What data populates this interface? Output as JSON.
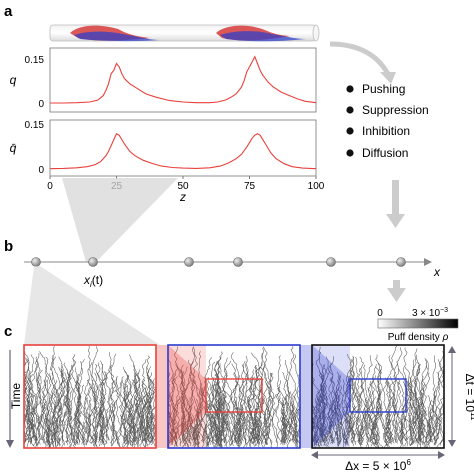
{
  "panels": {
    "a": {
      "label": "a"
    },
    "b": {
      "label": "b"
    },
    "c": {
      "label": "c"
    }
  },
  "chart_data": [
    {
      "type": "line",
      "ylabel": "q",
      "yticks": [
        "0",
        "0.15"
      ],
      "ylim": [
        0,
        0.16
      ],
      "xlim": [
        0,
        100
      ],
      "x": [
        0,
        5,
        10,
        15,
        18,
        20,
        21,
        22,
        23,
        24,
        25,
        26,
        27,
        28,
        30,
        33,
        36,
        40,
        45,
        50,
        55,
        60,
        63,
        66,
        68,
        70,
        72,
        73,
        74,
        75,
        76,
        77,
        78,
        79,
        80,
        81,
        82,
        84,
        87,
        90,
        93,
        96,
        100
      ],
      "series": [
        {
          "color": "#e8413c",
          "values": [
            0.003,
            0.003,
            0.004,
            0.006,
            0.012,
            0.025,
            0.04,
            0.06,
            0.09,
            0.1,
            0.12,
            0.11,
            0.09,
            0.075,
            0.06,
            0.045,
            0.03,
            0.02,
            0.01,
            0.006,
            0.004,
            0.004,
            0.006,
            0.012,
            0.02,
            0.03,
            0.05,
            0.07,
            0.095,
            0.11,
            0.125,
            0.14,
            0.12,
            0.1,
            0.085,
            0.075,
            0.065,
            0.05,
            0.035,
            0.025,
            0.015,
            0.008,
            0.004
          ]
        }
      ]
    },
    {
      "type": "line",
      "ylabel": "q̄",
      "yticks": [
        "0",
        "0.15"
      ],
      "xticks": [
        "0",
        "25",
        "50",
        "75",
        "100"
      ],
      "xlabel": "z",
      "ylim": [
        0,
        0.16
      ],
      "xlim": [
        0,
        100
      ],
      "x": [
        0,
        5,
        10,
        14,
        17,
        19,
        21,
        22,
        23,
        24,
        25,
        26,
        27,
        28,
        30,
        32,
        35,
        38,
        42,
        46,
        50,
        55,
        60,
        64,
        67,
        70,
        72,
        74,
        75,
        76,
        77,
        78,
        79,
        80,
        81,
        82,
        83,
        85,
        88,
        91,
        95,
        100
      ],
      "series": [
        {
          "color": "#e8413c",
          "values": [
            0.001,
            0.002,
            0.004,
            0.008,
            0.015,
            0.025,
            0.045,
            0.06,
            0.08,
            0.1,
            0.12,
            0.115,
            0.1,
            0.085,
            0.06,
            0.045,
            0.03,
            0.02,
            0.01,
            0.005,
            0.003,
            0.002,
            0.004,
            0.01,
            0.02,
            0.035,
            0.05,
            0.075,
            0.09,
            0.105,
            0.115,
            0.12,
            0.115,
            0.1,
            0.085,
            0.07,
            0.055,
            0.035,
            0.018,
            0.008,
            0.003,
            0.001
          ]
        }
      ]
    }
  ],
  "mechanisms": [
    "Pushing",
    "Suppression",
    "Inhibition",
    "Diffusion"
  ],
  "panel_b": {
    "axis_label": "x",
    "particle_label_main": "x",
    "particle_label_sub": "i",
    "particle_label_tail": "(t)",
    "particles_x": [
      36,
      93,
      189,
      238,
      331,
      401
    ]
  },
  "panel_c": {
    "ylabel": "Time",
    "colorbar": {
      "min_label": "0",
      "max_label_main": "3 × 10",
      "max_label_exp": "−3",
      "title_main": "Puff density ",
      "title_symbol": "ρ"
    },
    "dt_label_main": "Δt = 10",
    "dt_label_exp": "11",
    "dx_label_main": "Δx = 5 × 10",
    "dx_label_exp": "6",
    "colors": {
      "red": "#e8413c",
      "blue": "#2b3bd1",
      "black": "#111111"
    }
  }
}
